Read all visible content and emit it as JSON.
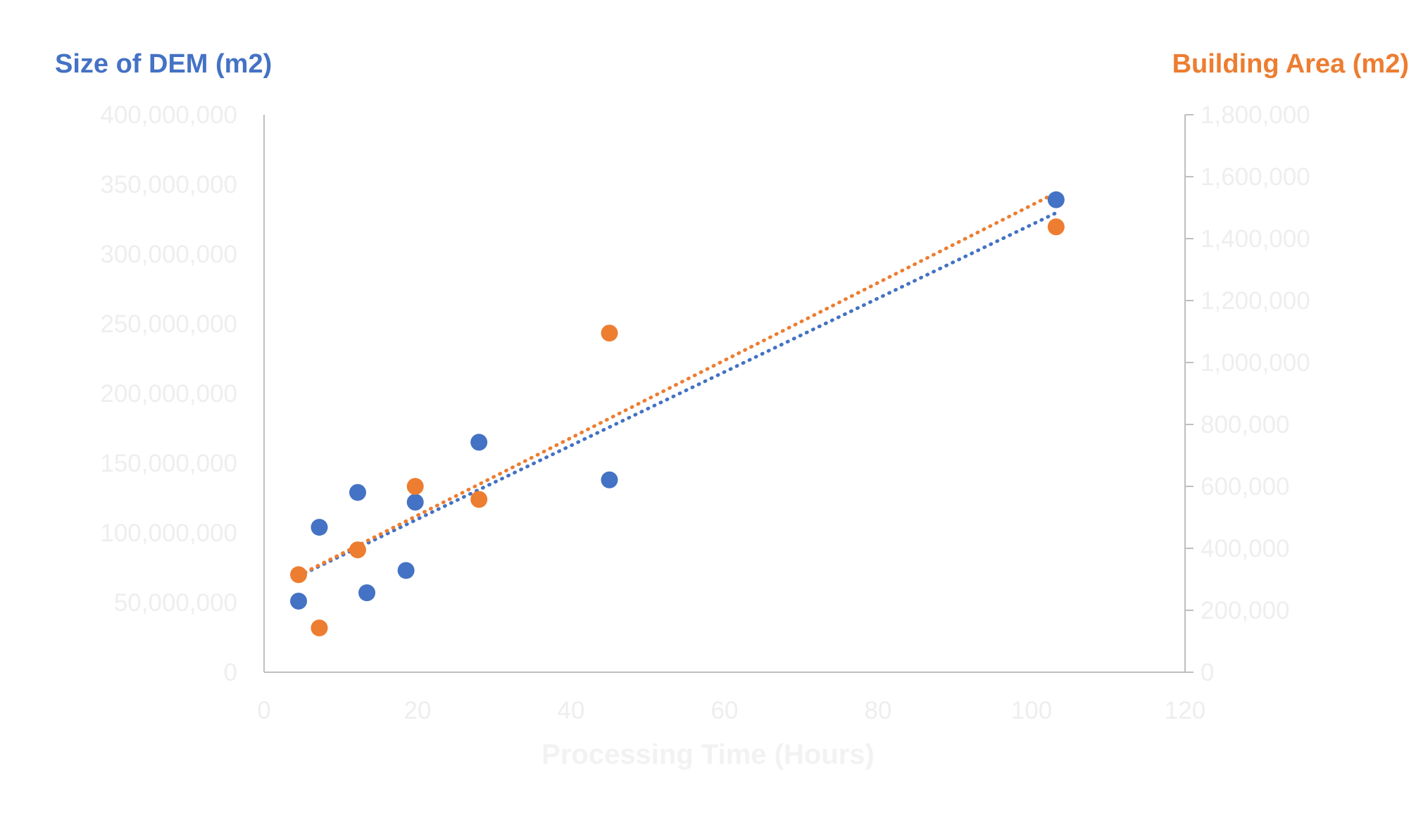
{
  "chart_data": {
    "type": "scatter",
    "xlabel": "Processing Time (Hours)",
    "ylabel_left": "Size of DEM (m2)",
    "ylabel_right": "Building Area (m2)",
    "xlim": [
      0,
      120
    ],
    "ylim_left": [
      0,
      400000000
    ],
    "ylim_right": [
      0,
      1800000
    ],
    "x_ticks": [
      0,
      20,
      40,
      60,
      80,
      100,
      120
    ],
    "y_left_ticks": [
      "0",
      "50,000,000",
      "100,000,000",
      "150,000,000",
      "200,000,000",
      "250,000,000",
      "300,000,000",
      "350,000,000",
      "400,000,000"
    ],
    "y_right_ticks": [
      "0",
      "200,000",
      "400,000",
      "600,000",
      "800,000",
      "1,000,000",
      "1,200,000",
      "1,400,000",
      "1,600,000",
      "1,800,000"
    ],
    "grid": false,
    "series": [
      {
        "axis": "left",
        "color": "#4472C4",
        "trendline": "linear",
        "points": [
          {
            "x": 4.5,
            "y": 51000000
          },
          {
            "x": 7.2,
            "y": 104000000
          },
          {
            "x": 12.2,
            "y": 129000000
          },
          {
            "x": 13.4,
            "y": 57000000
          },
          {
            "x": 18.5,
            "y": 73000000
          },
          {
            "x": 19.7,
            "y": 122000000
          },
          {
            "x": 28.0,
            "y": 165000000
          },
          {
            "x": 45.0,
            "y": 138000000
          },
          {
            "x": 103.2,
            "y": 339000000
          }
        ]
      },
      {
        "axis": "right",
        "color": "#ED7D31",
        "trendline": "linear",
        "points": [
          {
            "x": 4.5,
            "y": 315000
          },
          {
            "x": 7.2,
            "y": 143000
          },
          {
            "x": 12.2,
            "y": 395000
          },
          {
            "x": 19.7,
            "y": 600000
          },
          {
            "x": 28.0,
            "y": 558000
          },
          {
            "x": 45.0,
            "y": 1095000
          },
          {
            "x": 103.2,
            "y": 1438000
          }
        ]
      }
    ]
  }
}
